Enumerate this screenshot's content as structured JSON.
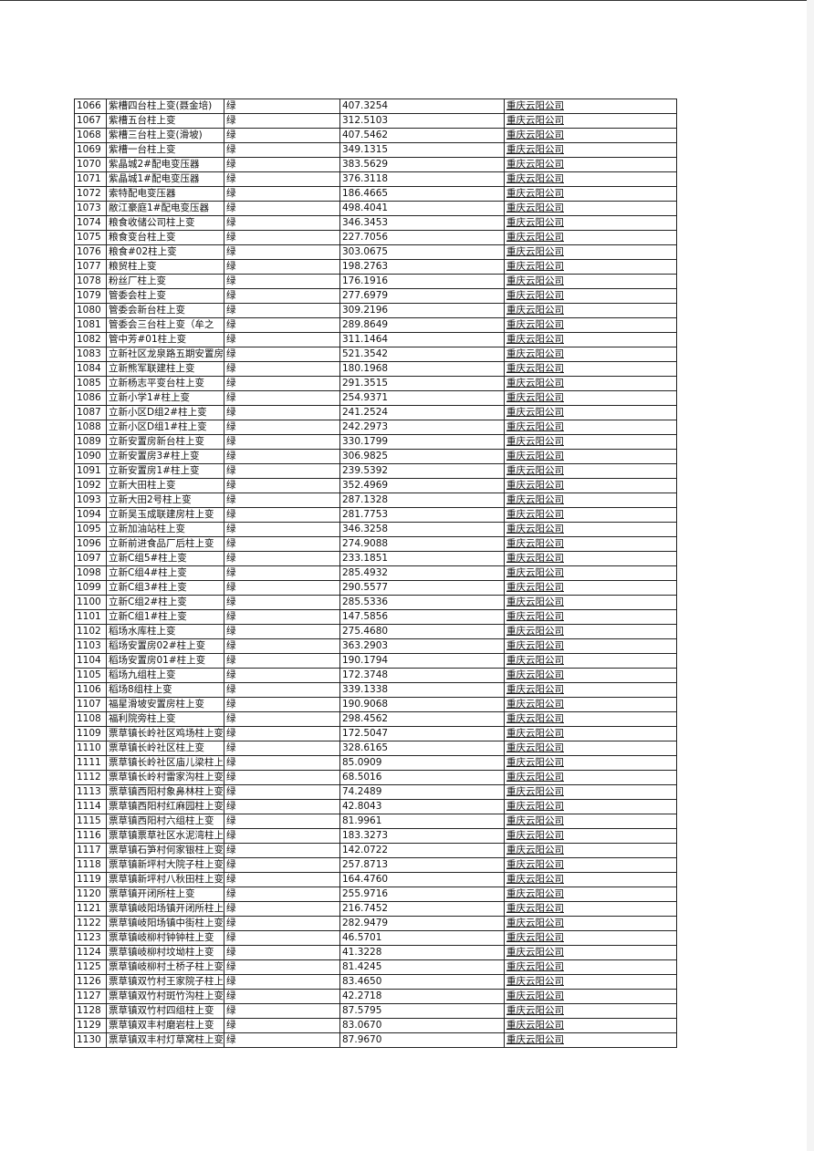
{
  "table": {
    "rows": [
      [
        "1066",
        "紫槽四台柱上变(聂金培)",
        "绿",
        "407.3254",
        "重庆云阳公司"
      ],
      [
        "1067",
        "紫槽五台柱上变",
        "绿",
        "312.5103",
        "重庆云阳公司"
      ],
      [
        "1068",
        "紫槽三台柱上变(滑坡)",
        "绿",
        "407.5462",
        "重庆云阳公司"
      ],
      [
        "1069",
        "紫槽一台柱上变",
        "绿",
        "349.1315",
        "重庆云阳公司"
      ],
      [
        "1070",
        "紫晶城2#配电变压器",
        "绿",
        "383.5629",
        "重庆云阳公司"
      ],
      [
        "1071",
        "紫晶城1#配电变压器",
        "绿",
        "376.3118",
        "重庆云阳公司"
      ],
      [
        "1072",
        "索特配电变压器",
        "绿",
        "186.4665",
        "重庆云阳公司"
      ],
      [
        "1073",
        "敝江豪庭1#配电变压器",
        "绿",
        "498.4041",
        "重庆云阳公司"
      ],
      [
        "1074",
        "粮食收储公司柱上变",
        "绿",
        "346.3453",
        "重庆云阳公司"
      ],
      [
        "1075",
        "粮食变台柱上变",
        "绿",
        "227.7056",
        "重庆云阳公司"
      ],
      [
        "1076",
        "粮食#02柱上变",
        "绿",
        "303.0675",
        "重庆云阳公司"
      ],
      [
        "1077",
        "粮贸柱上变",
        "绿",
        "198.2763",
        "重庆云阳公司"
      ],
      [
        "1078",
        "粉丝厂柱上变",
        "绿",
        "176.1916",
        "重庆云阳公司"
      ],
      [
        "1079",
        "管委会柱上变",
        "绿",
        "277.6979",
        "重庆云阳公司"
      ],
      [
        "1080",
        "管委会新台柱上变",
        "绿",
        "309.2196",
        "重庆云阳公司"
      ],
      [
        "1081",
        "管委会三台柱上变（牟之",
        "绿",
        "289.8649",
        "重庆云阳公司"
      ],
      [
        "1082",
        "管中芳#01柱上变",
        "绿",
        "311.1464",
        "重庆云阳公司"
      ],
      [
        "1083",
        "立新社区龙泉路五期安置房",
        "绿",
        "521.3542",
        "重庆云阳公司"
      ],
      [
        "1084",
        "立新熊军联建柱上变",
        "绿",
        "180.1968",
        "重庆云阳公司"
      ],
      [
        "1085",
        "立新杨志平变台柱上变",
        "绿",
        "291.3515",
        "重庆云阳公司"
      ],
      [
        "1086",
        "立新小学1#柱上变",
        "绿",
        "254.9371",
        "重庆云阳公司"
      ],
      [
        "1087",
        "立新小区D组2#柱上变",
        "绿",
        "241.2524",
        "重庆云阳公司"
      ],
      [
        "1088",
        "立新小区D组1#柱上变",
        "绿",
        "242.2973",
        "重庆云阳公司"
      ],
      [
        "1089",
        "立新安置房新台柱上变",
        "绿",
        "330.1799",
        "重庆云阳公司"
      ],
      [
        "1090",
        "立新安置房3#柱上变",
        "绿",
        "306.9825",
        "重庆云阳公司"
      ],
      [
        "1091",
        "立新安置房1#柱上变",
        "绿",
        "239.5392",
        "重庆云阳公司"
      ],
      [
        "1092",
        "立新大田柱上变",
        "绿",
        "352.4969",
        "重庆云阳公司"
      ],
      [
        "1093",
        "立新大田2号柱上变",
        "绿",
        "287.1328",
        "重庆云阳公司"
      ],
      [
        "1094",
        "立新吴玉成联建房柱上变",
        "绿",
        "281.7753",
        "重庆云阳公司"
      ],
      [
        "1095",
        "立新加油站柱上变",
        "绿",
        "346.3258",
        "重庆云阳公司"
      ],
      [
        "1096",
        "立新前进食品厂后柱上变",
        "绿",
        "274.9088",
        "重庆云阳公司"
      ],
      [
        "1097",
        "立新C组5#柱上变",
        "绿",
        "233.1851",
        "重庆云阳公司"
      ],
      [
        "1098",
        "立新C组4#柱上变",
        "绿",
        "285.4932",
        "重庆云阳公司"
      ],
      [
        "1099",
        "立新C组3#柱上变",
        "绿",
        "290.5577",
        "重庆云阳公司"
      ],
      [
        "1100",
        "立新C组2#柱上变",
        "绿",
        "285.5336",
        "重庆云阳公司"
      ],
      [
        "1101",
        "立新C组1#柱上变",
        "绿",
        "147.5856",
        "重庆云阳公司"
      ],
      [
        "1102",
        "稻场水库柱上变",
        "绿",
        "275.4680",
        "重庆云阳公司"
      ],
      [
        "1103",
        "稻场安置房02#柱上变",
        "绿",
        "363.2903",
        "重庆云阳公司"
      ],
      [
        "1104",
        "稻场安置房01#柱上变",
        "绿",
        "190.1794",
        "重庆云阳公司"
      ],
      [
        "1105",
        "稻场九组柱上变",
        "绿",
        "172.3748",
        "重庆云阳公司"
      ],
      [
        "1106",
        "稻场8组柱上变",
        "绿",
        "339.1338",
        "重庆云阳公司"
      ],
      [
        "1107",
        "福星滑坡安置房柱上变",
        "绿",
        "190.9068",
        "重庆云阳公司"
      ],
      [
        "1108",
        "福利院旁柱上变",
        "绿",
        "298.4562",
        "重庆云阳公司"
      ],
      [
        "1109",
        "票草镇长岭社区鸡场柱上变",
        "绿",
        "172.5047",
        "重庆云阳公司"
      ],
      [
        "1110",
        "票草镇长岭社区柱上变",
        "绿",
        "328.6165",
        "重庆云阳公司"
      ],
      [
        "1111",
        "票草镇长岭社区庙儿梁柱上",
        "绿",
        "85.0909",
        "重庆云阳公司"
      ],
      [
        "1112",
        "票草镇长岭村雷家沟柱上变",
        "绿",
        "68.5016",
        "重庆云阳公司"
      ],
      [
        "1113",
        "票草镇西阳村象鼻林柱上变",
        "绿",
        "74.2489",
        "重庆云阳公司"
      ],
      [
        "1114",
        "票草镇西阳村红麻园柱上变",
        "绿",
        "42.8043",
        "重庆云阳公司"
      ],
      [
        "1115",
        "票草镇西阳村六组柱上变",
        "绿",
        "81.9961",
        "重庆云阳公司"
      ],
      [
        "1116",
        "票草镇票草社区水泥湾柱上",
        "绿",
        "183.3273",
        "重庆云阳公司"
      ],
      [
        "1117",
        "票草镇石笋村何家银柱上变",
        "绿",
        "142.0722",
        "重庆云阳公司"
      ],
      [
        "1118",
        "票草镇新坪村大院子柱上变",
        "绿",
        "257.8713",
        "重庆云阳公司"
      ],
      [
        "1119",
        "票草镇新坪村八秋田柱上变",
        "绿",
        "164.4760",
        "重庆云阳公司"
      ],
      [
        "1120",
        "票草镇开闭所柱上变",
        "绿",
        "255.9716",
        "重庆云阳公司"
      ],
      [
        "1121",
        "票草镇岐阳场镇开闭所柱上",
        "绿",
        "216.7452",
        "重庆云阳公司"
      ],
      [
        "1122",
        "票草镇岐阳场镇中街柱上变",
        "绿",
        "282.9479",
        "重庆云阳公司"
      ],
      [
        "1123",
        "票草镇岐柳村钟钟柱上变",
        "绿",
        "46.5701",
        "重庆云阳公司"
      ],
      [
        "1124",
        "票草镇岐柳村坟坳柱上变",
        "绿",
        "41.3228",
        "重庆云阳公司"
      ],
      [
        "1125",
        "票草镇岐柳村土桥子柱上变",
        "绿",
        "81.4245",
        "重庆云阳公司"
      ],
      [
        "1126",
        "票草镇双竹村王家院子柱上",
        "绿",
        "83.4650",
        "重庆云阳公司"
      ],
      [
        "1127",
        "票草镇双竹村斑竹沟柱上变",
        "绿",
        "42.2718",
        "重庆云阳公司"
      ],
      [
        "1128",
        "票草镇双竹村四组柱上变",
        "绿",
        "87.5795",
        "重庆云阳公司"
      ],
      [
        "1129",
        "票草镇双丰村磨岩柱上变",
        "绿",
        "83.0670",
        "重庆云阳公司"
      ],
      [
        "1130",
        "票草镇双丰村灯草窝柱上变",
        "绿",
        "87.9670",
        "重庆云阳公司"
      ]
    ]
  }
}
